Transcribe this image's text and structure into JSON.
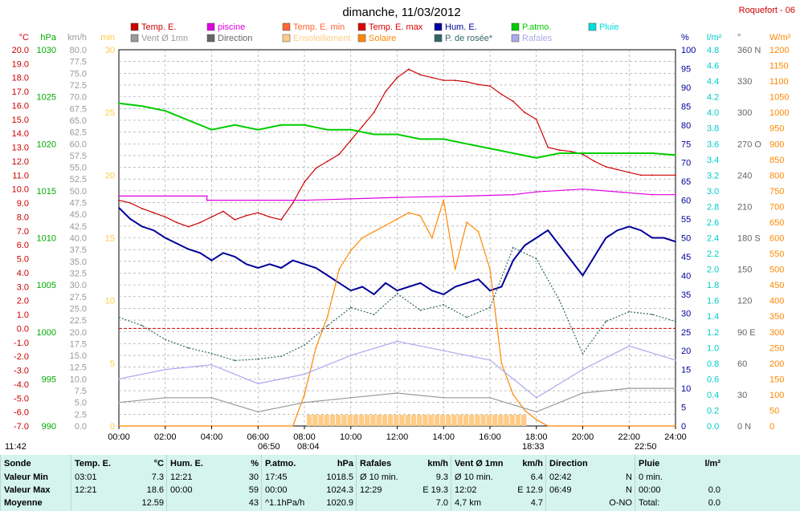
{
  "title": "dimanche, 11/03/2012",
  "station": "Roquefort - 06",
  "legend": [
    {
      "label": "Temp. E.",
      "color": "#cc0000"
    },
    {
      "label": "piscine",
      "color": "#e000e0"
    },
    {
      "label": "Temp. E. min",
      "color": "#ff6633"
    },
    {
      "label": "Temp. E. max",
      "color": "#dd0000"
    },
    {
      "label": "Hum. E.",
      "color": "#000099"
    },
    {
      "label": "P.atmo.",
      "color": "#00cc00"
    },
    {
      "label": "Pluie",
      "color": "#00dddd"
    },
    {
      "label": "Vent Ø 1mn",
      "color": "#999999"
    },
    {
      "label": "Direction",
      "color": "#666666"
    },
    {
      "label": "Ensoleillement",
      "color": "#ffcc88"
    },
    {
      "label": "Solaire",
      "color": "#ff8800"
    },
    {
      "label": "P. de rosée*",
      "color": "#336666"
    },
    {
      "label": "Rafales",
      "color": "#aaaaee"
    }
  ],
  "axes": {
    "temp": {
      "unit": "°C",
      "color": "#cc0000",
      "ticks": [
        "20.0",
        "19.0",
        "18.0",
        "17.0",
        "16.0",
        "15.0",
        "14.0",
        "13.0",
        "12.0",
        "11.0",
        "10.0",
        "9.0",
        "8.0",
        "7.0",
        "6.0",
        "5.0",
        "4.0",
        "3.0",
        "2.0",
        "1.0",
        "0.0",
        "-1.0",
        "-2.0",
        "-3.0",
        "-4.0",
        "-5.0",
        "-6.0",
        "-7.0"
      ]
    },
    "press": {
      "unit": "hPa",
      "color": "#00aa00",
      "ticks": [
        "1030",
        "1025",
        "1020",
        "1015",
        "1010",
        "1005",
        "1000",
        "995",
        "990"
      ]
    },
    "wind": {
      "unit": "km/h",
      "color": "#999999",
      "ticks": [
        "80.0",
        "77.5",
        "75.0",
        "72.5",
        "70.0",
        "67.5",
        "65.0",
        "62.5",
        "60.0",
        "57.5",
        "55.0",
        "52.5",
        "50.0",
        "47.5",
        "45.0",
        "42.5",
        "40.0",
        "37.5",
        "35.0",
        "32.5",
        "30.0",
        "27.5",
        "25.0",
        "22.5",
        "20.0",
        "17.5",
        "15.0",
        "12.5",
        "10.0",
        "7.5",
        "5.0",
        "2.5",
        "0.0"
      ]
    },
    "sun": {
      "unit": "min",
      "color": "#ffcc44",
      "ticks": [
        "30",
        "25",
        "20",
        "15",
        "10",
        "5",
        "0"
      ]
    },
    "hum": {
      "unit": "%",
      "color": "#000099",
      "ticks": [
        "100",
        "95",
        "90",
        "85",
        "80",
        "75",
        "70",
        "65",
        "60",
        "55",
        "50",
        "45",
        "40",
        "35",
        "30",
        "25",
        "20",
        "15",
        "10",
        "5",
        "0"
      ]
    },
    "rain": {
      "unit": "l/m²",
      "color": "#00cccc",
      "ticks": [
        "4.8",
        "4.6",
        "4.4",
        "4.2",
        "4.0",
        "3.8",
        "3.6",
        "3.4",
        "3.2",
        "3.0",
        "2.8",
        "2.6",
        "2.4",
        "2.2",
        "2.0",
        "1.8",
        "1.6",
        "1.4",
        "1.2",
        "1.0",
        "0.8",
        "0.6",
        "0.4",
        "0.2",
        "0.0"
      ]
    },
    "dir": {
      "unit": "°",
      "color": "#666666",
      "ticks": [
        "360 N",
        "330",
        "300",
        "270 O",
        "240",
        "210",
        "180 S",
        "150",
        "120",
        "90 E",
        "60",
        "30",
        "0 N"
      ]
    },
    "solar": {
      "unit": "W/m²",
      "color": "#ff8800",
      "ticks": [
        "1200",
        "1150",
        "1100",
        "1050",
        "1000",
        "950",
        "900",
        "850",
        "800",
        "750",
        "700",
        "650",
        "600",
        "550",
        "500",
        "450",
        "400",
        "350",
        "300",
        "250",
        "200",
        "150",
        "100",
        "50",
        "0"
      ]
    }
  },
  "x_ticks": [
    "00:00",
    "02:00",
    "04:00",
    "06:00",
    "08:00",
    "10:00",
    "12:00",
    "14:00",
    "16:00",
    "18:00",
    "20:00",
    "22:00",
    "24:00"
  ],
  "sun_times": {
    "sunrise": "06:50",
    "sunset": "18:33",
    "sunshine_start": "08:04",
    "sunshine_end": "22:50",
    "moonrise": "11:42"
  },
  "chart_data": {
    "type": "line",
    "x_unit": "hour",
    "series": [
      {
        "name": "Temp. E.",
        "unit": "°C",
        "points": [
          [
            0,
            9.2
          ],
          [
            0.5,
            9.0
          ],
          [
            1,
            8.6
          ],
          [
            1.5,
            8.3
          ],
          [
            2,
            8.0
          ],
          [
            2.5,
            7.6
          ],
          [
            3,
            7.3
          ],
          [
            3.5,
            7.6
          ],
          [
            4,
            8.0
          ],
          [
            4.5,
            8.4
          ],
          [
            5,
            7.8
          ],
          [
            5.5,
            8.1
          ],
          [
            6,
            8.3
          ],
          [
            6.5,
            8.0
          ],
          [
            7,
            7.8
          ],
          [
            7.5,
            9.0
          ],
          [
            8,
            10.5
          ],
          [
            8.5,
            11.5
          ],
          [
            9,
            12.0
          ],
          [
            9.5,
            12.5
          ],
          [
            10,
            13.5
          ],
          [
            10.5,
            14.5
          ],
          [
            11,
            15.5
          ],
          [
            11.5,
            17.0
          ],
          [
            12,
            18.0
          ],
          [
            12.5,
            18.6
          ],
          [
            13,
            18.2
          ],
          [
            13.5,
            18.0
          ],
          [
            14,
            17.8
          ],
          [
            14.5,
            17.8
          ],
          [
            15,
            17.7
          ],
          [
            15.5,
            17.5
          ],
          [
            16,
            17.4
          ],
          [
            16.5,
            16.8
          ],
          [
            17,
            16.3
          ],
          [
            17.5,
            15.5
          ],
          [
            18,
            15.0
          ],
          [
            18.5,
            13.0
          ],
          [
            19,
            12.8
          ],
          [
            19.5,
            12.7
          ],
          [
            20,
            12.5
          ],
          [
            20.5,
            12.0
          ],
          [
            21,
            11.6
          ],
          [
            21.5,
            11.4
          ],
          [
            22,
            11.2
          ],
          [
            22.5,
            11.0
          ],
          [
            23,
            11.0
          ],
          [
            24,
            11.0
          ]
        ]
      },
      {
        "name": "piscine",
        "unit": "°C",
        "points": [
          [
            0,
            9.5
          ],
          [
            3.8,
            9.5
          ],
          [
            3.8,
            9.2
          ],
          [
            8,
            9.2
          ],
          [
            10,
            9.3
          ],
          [
            12,
            9.4
          ],
          [
            15,
            9.5
          ],
          [
            17,
            9.6
          ],
          [
            18,
            9.8
          ],
          [
            20,
            10.0
          ],
          [
            23,
            9.6
          ],
          [
            24,
            9.6
          ]
        ]
      },
      {
        "name": "Hum. E.",
        "unit": "%",
        "points": [
          [
            0,
            58
          ],
          [
            0.5,
            55
          ],
          [
            1,
            53
          ],
          [
            1.5,
            52
          ],
          [
            2,
            50
          ],
          [
            3,
            47
          ],
          [
            3.5,
            46
          ],
          [
            4,
            44
          ],
          [
            4.5,
            46
          ],
          [
            5,
            45
          ],
          [
            5.5,
            43
          ],
          [
            6,
            42
          ],
          [
            6.5,
            43
          ],
          [
            7,
            42
          ],
          [
            7.5,
            44
          ],
          [
            8,
            43
          ],
          [
            8.5,
            42
          ],
          [
            9,
            40
          ],
          [
            9.5,
            38
          ],
          [
            10,
            36
          ],
          [
            10.5,
            37
          ],
          [
            11,
            35
          ],
          [
            11.5,
            38
          ],
          [
            12,
            36
          ],
          [
            12.5,
            37
          ],
          [
            13,
            38
          ],
          [
            13.5,
            36
          ],
          [
            14,
            35
          ],
          [
            14.5,
            37
          ],
          [
            15,
            38
          ],
          [
            15.5,
            39
          ],
          [
            16,
            36
          ],
          [
            16.5,
            37
          ],
          [
            17,
            44
          ],
          [
            17.5,
            48
          ],
          [
            18,
            50
          ],
          [
            18.5,
            52
          ],
          [
            19,
            48
          ],
          [
            19.5,
            44
          ],
          [
            20,
            40
          ],
          [
            20.5,
            45
          ],
          [
            21,
            50
          ],
          [
            21.5,
            52
          ],
          [
            22,
            53
          ],
          [
            22.5,
            52
          ],
          [
            23,
            50
          ],
          [
            23.5,
            50
          ],
          [
            24,
            49
          ]
        ]
      },
      {
        "name": "P.atmo.",
        "unit": "hPa",
        "points": [
          [
            0,
            1024.3
          ],
          [
            1,
            1024.0
          ],
          [
            2,
            1023.5
          ],
          [
            3,
            1022.5
          ],
          [
            4,
            1021.5
          ],
          [
            5,
            1022.0
          ],
          [
            6,
            1021.5
          ],
          [
            7,
            1022.0
          ],
          [
            8,
            1022.0
          ],
          [
            9,
            1021.5
          ],
          [
            10,
            1021.5
          ],
          [
            11,
            1021.0
          ],
          [
            12,
            1021.0
          ],
          [
            13,
            1020.5
          ],
          [
            14,
            1020.5
          ],
          [
            15,
            1020.0
          ],
          [
            16,
            1019.5
          ],
          [
            17,
            1019.0
          ],
          [
            18,
            1018.5
          ],
          [
            19,
            1019.0
          ],
          [
            20,
            1019.0
          ],
          [
            21,
            1019.0
          ],
          [
            22,
            1019.0
          ],
          [
            23,
            1019.0
          ],
          [
            24,
            1018.8
          ]
        ]
      },
      {
        "name": "Solaire",
        "unit": "W/m²",
        "points": [
          [
            0,
            0
          ],
          [
            7.5,
            0
          ],
          [
            8,
            100
          ],
          [
            8.5,
            250
          ],
          [
            9,
            350
          ],
          [
            9.5,
            500
          ],
          [
            10,
            560
          ],
          [
            10.5,
            600
          ],
          [
            11,
            620
          ],
          [
            11.5,
            640
          ],
          [
            12,
            660
          ],
          [
            12.5,
            680
          ],
          [
            13,
            670
          ],
          [
            13.5,
            600
          ],
          [
            14,
            720
          ],
          [
            14.5,
            500
          ],
          [
            15,
            650
          ],
          [
            15.5,
            620
          ],
          [
            16,
            500
          ],
          [
            16.5,
            200
          ],
          [
            17,
            100
          ],
          [
            17.5,
            50
          ],
          [
            18,
            20
          ],
          [
            18.5,
            0
          ],
          [
            24,
            0
          ]
        ]
      },
      {
        "name": "P. de rosée*",
        "unit": "°C",
        "points": [
          [
            0,
            0.8
          ],
          [
            1,
            0.2
          ],
          [
            2,
            -0.8
          ],
          [
            3,
            -1.4
          ],
          [
            4,
            -1.8
          ],
          [
            5,
            -2.3
          ],
          [
            6,
            -2.2
          ],
          [
            7,
            -2.0
          ],
          [
            8,
            -1.2
          ],
          [
            9,
            0.2
          ],
          [
            10,
            1.5
          ],
          [
            11,
            1.0
          ],
          [
            12,
            2.5
          ],
          [
            13,
            1.3
          ],
          [
            14,
            1.7
          ],
          [
            15,
            0.8
          ],
          [
            16,
            1.5
          ],
          [
            17,
            5.8
          ],
          [
            18,
            5.0
          ],
          [
            19,
            2.0
          ],
          [
            20,
            -1.8
          ],
          [
            21,
            0.5
          ],
          [
            22,
            1.2
          ],
          [
            23,
            1.0
          ],
          [
            24,
            0.5
          ]
        ]
      },
      {
        "name": "Vent Ø 1mn",
        "unit": "km/h",
        "points": [
          [
            0,
            5
          ],
          [
            2,
            6
          ],
          [
            4,
            6
          ],
          [
            6,
            3
          ],
          [
            8,
            5
          ],
          [
            10,
            6
          ],
          [
            12,
            7
          ],
          [
            14,
            6
          ],
          [
            16,
            6
          ],
          [
            18,
            3
          ],
          [
            20,
            7
          ],
          [
            22,
            8
          ],
          [
            24,
            8
          ]
        ]
      },
      {
        "name": "Rafales",
        "unit": "km/h",
        "points": [
          [
            0,
            10
          ],
          [
            2,
            12
          ],
          [
            4,
            13
          ],
          [
            6,
            9
          ],
          [
            8,
            11
          ],
          [
            10,
            15
          ],
          [
            12,
            18
          ],
          [
            14,
            16
          ],
          [
            16,
            14
          ],
          [
            18,
            6
          ],
          [
            20,
            12
          ],
          [
            22,
            17
          ],
          [
            24,
            14
          ]
        ]
      }
    ],
    "threshold_line": {
      "name": "0 °C",
      "value": 0
    },
    "x_range": [
      0,
      24
    ]
  },
  "stats": {
    "columns": [
      {
        "head": "Sonde",
        "unit": "",
        "rows": [
          "Valeur Min",
          "Valeur Max",
          "Moyenne"
        ]
      },
      {
        "head": "Temp. E.",
        "unit": "°C",
        "rows": [
          [
            "03:01",
            "7.3"
          ],
          [
            "12:21",
            "18.6"
          ],
          [
            "",
            "12.59"
          ]
        ]
      },
      {
        "head": "Hum. E.",
        "unit": "%",
        "rows": [
          [
            "12:21",
            "30"
          ],
          [
            "00:00",
            "59"
          ],
          [
            "",
            "43"
          ]
        ]
      },
      {
        "head": "P.atmo.",
        "unit": "hPa",
        "rows": [
          [
            "17:45",
            "1018.5"
          ],
          [
            "00:00",
            "1024.3"
          ],
          [
            "^1.1hPa/h",
            "1020.9"
          ]
        ]
      },
      {
        "head": "Rafales",
        "unit": "km/h",
        "rows": [
          [
            "Ø 10 min.",
            "9.3"
          ],
          [
            "12:29",
            "E 19.3"
          ],
          [
            "",
            "7.0"
          ]
        ]
      },
      {
        "head": "Vent Ø 1mn",
        "unit": "km/h",
        "rows": [
          [
            "Ø 10 min.",
            "6.4"
          ],
          [
            "12:02",
            "E 12.9"
          ],
          [
            "4,7 km",
            "4.7"
          ]
        ]
      },
      {
        "head": "Direction",
        "unit": "",
        "rows": [
          [
            "02:42",
            "N"
          ],
          [
            "06:49",
            "N"
          ],
          [
            "",
            "O-NO"
          ]
        ]
      },
      {
        "head": "Pluie",
        "unit": "l/m²",
        "rows": [
          [
            "0 min.",
            ""
          ],
          [
            "00:00",
            "0.0"
          ],
          [
            "Total:",
            "0.0"
          ]
        ]
      }
    ]
  }
}
